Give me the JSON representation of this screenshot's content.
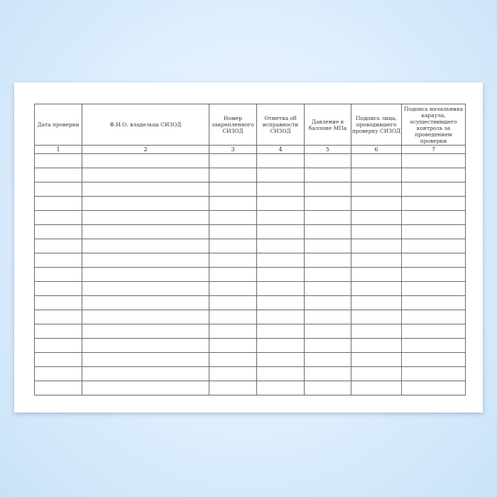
{
  "form": {
    "columns": [
      {
        "header": "Дата проверки",
        "number": "1"
      },
      {
        "header": "Ф.И.О. владельца СИЗОД",
        "number": "2"
      },
      {
        "header": "Номер закрепленного СИЗОД",
        "number": "3"
      },
      {
        "header": "Отметка об исправности СИЗОД",
        "number": "4"
      },
      {
        "header": "Давление в баллоне МПа",
        "number": "5"
      },
      {
        "header": "Подпись лица, проводившего проверку СИЗОД",
        "number": "6"
      },
      {
        "header": "Подпись начальника караула, осуществившего контроль за проведением проверки",
        "number": "7"
      }
    ],
    "empty_rows": 17
  }
}
